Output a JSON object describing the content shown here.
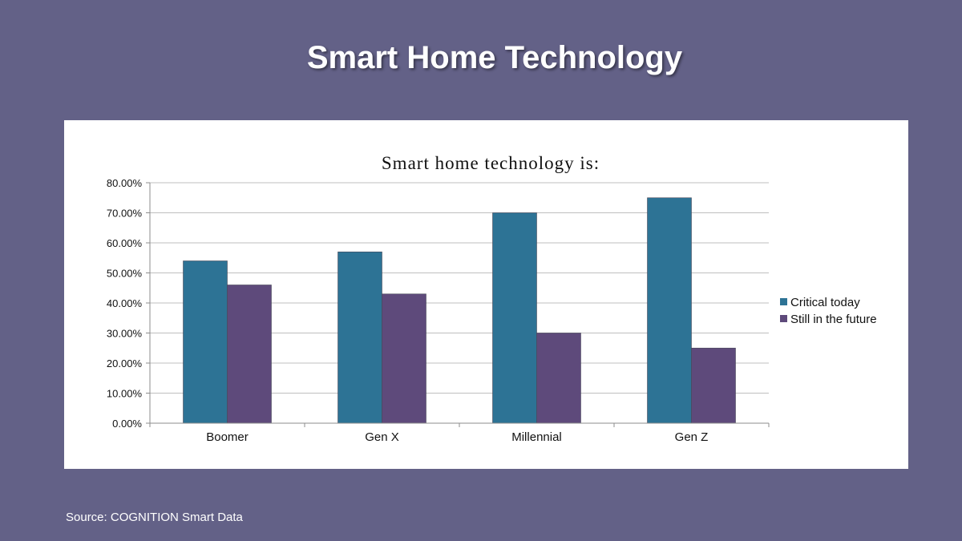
{
  "slide": {
    "title": "Smart Home Technology",
    "source": "Source: COGNITION Smart Data",
    "background_color": "#636187"
  },
  "chart_data": {
    "type": "bar",
    "title": "Smart home technology is:",
    "xlabel": "",
    "ylabel": "",
    "categories": [
      "Boomer",
      "Gen X",
      "Millennial",
      "Gen Z"
    ],
    "series": [
      {
        "name": "Critical today",
        "color": "#2d7395",
        "values": [
          0.54,
          0.57,
          0.7,
          0.75
        ]
      },
      {
        "name": "Still in the future",
        "color": "#5e4a7b",
        "values": [
          0.46,
          0.43,
          0.3,
          0.25
        ]
      }
    ],
    "ylim": [
      0,
      0.8
    ],
    "yticks": [
      {
        "value": 0.8,
        "label": "80.00%"
      },
      {
        "value": 0.7,
        "label": "70.00%"
      },
      {
        "value": 0.6,
        "label": "60.00%"
      },
      {
        "value": 0.5,
        "label": "50.00%"
      },
      {
        "value": 0.4,
        "label": "40.00%"
      },
      {
        "value": 0.3,
        "label": "30.00%"
      },
      {
        "value": 0.2,
        "label": "20.00%"
      },
      {
        "value": 0.1,
        "label": "10.00%"
      },
      {
        "value": 0.0,
        "label": "0.00%"
      }
    ],
    "grid": true,
    "legend_position": "right"
  }
}
